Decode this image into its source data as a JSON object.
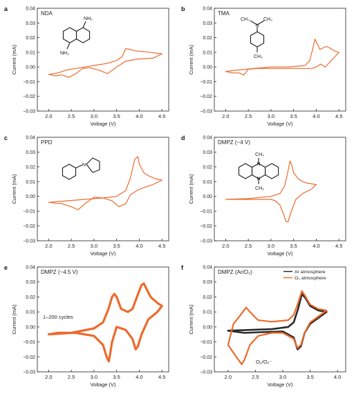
{
  "figure": {
    "colors": {
      "orange": "#ec6a2c",
      "dark": "#2a2a2a",
      "axis": "#231f20"
    }
  },
  "chart_data": [
    {
      "type": "line",
      "panel_letter": "a",
      "label": "NDA",
      "xlabel": "Voltage (V)",
      "ylabel": "Current (mA)",
      "xlim": [
        1.75,
        4.65
      ],
      "ylim": [
        -0.03,
        0.04
      ],
      "xticks": [
        2.0,
        2.5,
        3.0,
        3.5,
        4.0,
        4.5
      ],
      "yticks": [
        -0.03,
        -0.02,
        -0.01,
        0.0,
        0.01,
        0.02,
        0.03,
        0.04
      ],
      "xtick_labels": [
        "2.0",
        "2.5",
        "3.0",
        "3.5",
        "4.0",
        "4.5"
      ],
      "ytick_labels": [
        "−0.03",
        "−0.02",
        "−0.01",
        "0.00",
        "0.01",
        "0.02",
        "0.03",
        "0.04"
      ],
      "molecule": "naphthalenediamine",
      "chem_labels": [
        "NH₂",
        "NH₂"
      ],
      "grid": false,
      "series": [
        {
          "color": "orange",
          "x": [
            2.0,
            2.2,
            2.4,
            2.6,
            2.8,
            3.0,
            3.2,
            3.35,
            3.5,
            3.62,
            3.7,
            3.8,
            3.9,
            4.1,
            4.3,
            4.5,
            4.3,
            4.0,
            3.7,
            3.5,
            3.3,
            3.1,
            2.9,
            2.75,
            2.6,
            2.45,
            2.3,
            2.15,
            2.0
          ],
          "y": [
            -0.005,
            -0.004,
            -0.002,
            -0.001,
            0.0,
            0.001,
            0.002,
            0.003,
            0.0045,
            0.007,
            0.0125,
            0.012,
            0.011,
            0.0105,
            0.0098,
            0.009,
            0.006,
            0.0055,
            0.004,
            0.0,
            -0.0045,
            -0.002,
            -0.0005,
            -0.001,
            -0.0045,
            -0.007,
            -0.0055,
            -0.006,
            -0.005
          ]
        }
      ]
    },
    {
      "type": "line",
      "panel_letter": "b",
      "label": "TMA",
      "xlabel": "Voltage (V)",
      "ylabel": "Current (mA)",
      "xlim": [
        1.75,
        4.65
      ],
      "ylim": [
        -0.03,
        0.04
      ],
      "xticks": [
        2.0,
        2.5,
        3.0,
        3.5,
        4.0,
        4.5
      ],
      "yticks": [
        -0.03,
        -0.02,
        -0.01,
        0.0,
        0.01,
        0.02,
        0.03,
        0.04
      ],
      "xtick_labels": [
        "2.0",
        "2.5",
        "3.0",
        "3.5",
        "4.0",
        "4.5"
      ],
      "ytick_labels": [
        "−0.03",
        "−0.02",
        "−0.01",
        "0.00",
        "0.01",
        "0.02",
        "0.03",
        "0.04"
      ],
      "molecule": "trimethylaniline",
      "chem_labels": [
        "CH₃",
        "N",
        "CH₃",
        "CH₃"
      ],
      "grid": false,
      "series": [
        {
          "color": "orange",
          "x": [
            2.0,
            2.3,
            2.6,
            3.0,
            3.4,
            3.75,
            3.85,
            3.92,
            3.97,
            4.02,
            4.08,
            4.15,
            4.22,
            4.3,
            4.4,
            4.5,
            4.35,
            4.2,
            4.1,
            4.0,
            3.9,
            3.7,
            3.4,
            3.0,
            2.7,
            2.5,
            2.4,
            2.3,
            2.15,
            2.0
          ],
          "y": [
            -0.003,
            -0.002,
            -0.001,
            0.0,
            0.0,
            0.001,
            0.004,
            0.012,
            0.019,
            0.016,
            0.012,
            0.013,
            0.014,
            0.013,
            0.011,
            0.01,
            0.005,
            0.0,
            0.002,
            0.0,
            -0.001,
            -0.001,
            -0.001,
            -0.001,
            -0.001,
            -0.0015,
            -0.0055,
            -0.004,
            -0.004,
            -0.003
          ]
        }
      ]
    },
    {
      "type": "line",
      "panel_letter": "c",
      "label": "PPD",
      "xlabel": "Voltage (V)",
      "ylabel": "Current (mA)",
      "xlim": [
        1.75,
        4.65
      ],
      "ylim": [
        -0.03,
        0.04
      ],
      "xticks": [
        2.0,
        2.5,
        3.0,
        3.5,
        4.0,
        4.5
      ],
      "yticks": [
        -0.03,
        -0.02,
        -0.01,
        0.0,
        0.01,
        0.02,
        0.03,
        0.04
      ],
      "xtick_labels": [
        "2.0",
        "2.5",
        "3.0",
        "3.5",
        "4.0",
        "4.5"
      ],
      "ytick_labels": [
        "−0.03",
        "−0.02",
        "−0.01",
        "0.00",
        "0.01",
        "0.02",
        "0.03",
        "0.04"
      ],
      "molecule": "phenylpyrrolidine",
      "chem_labels": [
        "N"
      ],
      "grid": false,
      "series": [
        {
          "color": "orange",
          "x": [
            2.0,
            2.4,
            2.8,
            3.2,
            3.5,
            3.7,
            3.8,
            3.9,
            3.97,
            4.0,
            4.1,
            4.2,
            4.35,
            4.5,
            4.3,
            4.1,
            3.95,
            3.8,
            3.7,
            3.55,
            3.4,
            3.2,
            3.0,
            2.8,
            2.65,
            2.5,
            2.3,
            2.0
          ],
          "y": [
            -0.004,
            -0.003,
            -0.002,
            -0.001,
            0.0,
            0.004,
            0.012,
            0.025,
            0.027,
            0.022,
            0.016,
            0.014,
            0.012,
            0.011,
            0.008,
            0.006,
            0.004,
            0.001,
            -0.005,
            -0.007,
            -0.003,
            -0.001,
            -0.0005,
            -0.005,
            -0.009,
            -0.007,
            -0.005,
            -0.004
          ]
        }
      ]
    },
    {
      "type": "line",
      "panel_letter": "d",
      "label": "DMPZ (~4 V)",
      "xlabel": "Voltage (V)",
      "ylabel": "Current (mA)",
      "xlim": [
        1.75,
        4.65
      ],
      "ylim": [
        -0.03,
        0.04
      ],
      "xticks": [
        2.0,
        2.5,
        3.0,
        3.5,
        4.0,
        4.5
      ],
      "yticks": [
        -0.03,
        -0.02,
        -0.01,
        0.0,
        0.01,
        0.02,
        0.03,
        0.04
      ],
      "xtick_labels": [
        "2.0",
        "2.5",
        "3.0",
        "3.5",
        "4.0",
        "4.5"
      ],
      "ytick_labels": [
        "−0.03",
        "−0.02",
        "−0.01",
        "0.00",
        "0.01",
        "0.02",
        "0.03",
        "0.04"
      ],
      "molecule": "dimethylphenazine",
      "chem_labels": [
        "CH₃",
        "N",
        "N",
        "CH₃"
      ],
      "grid": false,
      "series": [
        {
          "color": "orange",
          "x": [
            2.0,
            2.5,
            3.0,
            3.2,
            3.3,
            3.37,
            3.42,
            3.45,
            3.5,
            3.6,
            3.7,
            3.8,
            3.9,
            4.0,
            3.9,
            3.7,
            3.55,
            3.45,
            3.38,
            3.33,
            3.28,
            3.2,
            3.1,
            3.0,
            2.8,
            2.5,
            2.2,
            2.0
          ],
          "y": [
            -0.002,
            -0.0015,
            0.0,
            0.002,
            0.007,
            0.016,
            0.024,
            0.022,
            0.016,
            0.012,
            0.01,
            0.009,
            0.0085,
            0.008,
            0.005,
            0.002,
            -0.002,
            -0.01,
            -0.017,
            -0.017,
            -0.012,
            -0.006,
            -0.003,
            -0.002,
            -0.002,
            -0.002,
            -0.002,
            -0.002
          ]
        }
      ]
    },
    {
      "type": "line",
      "panel_letter": "e",
      "label": "DMPZ (~4.5 V)",
      "xlabel": "Voltage (V)",
      "ylabel": "Current (mA)",
      "xlim": [
        1.75,
        4.65
      ],
      "ylim": [
        -0.03,
        0.04
      ],
      "xticks": [
        2.0,
        2.5,
        3.0,
        3.5,
        4.0,
        4.5
      ],
      "yticks": [
        -0.03,
        -0.02,
        -0.01,
        0.0,
        0.01,
        0.02,
        0.03,
        0.04
      ],
      "xtick_labels": [
        "2.0",
        "2.5",
        "3.0",
        "3.5",
        "4.0",
        "4.5"
      ],
      "ytick_labels": [
        "−0.03",
        "−0.02",
        "−0.01",
        "0.00",
        "0.01",
        "0.02",
        "0.03",
        "0.04"
      ],
      "annotations": [
        "1–200 cycles"
      ],
      "grid": false,
      "series": [
        {
          "color": "orange",
          "stroke_width": 3.2,
          "x": [
            2.0,
            2.5,
            3.0,
            3.2,
            3.32,
            3.4,
            3.45,
            3.5,
            3.6,
            3.75,
            3.85,
            3.95,
            4.05,
            4.1,
            4.15,
            4.25,
            4.4,
            4.5,
            4.4,
            4.2,
            4.05,
            3.97,
            3.92,
            3.85,
            3.7,
            3.5,
            3.4,
            3.33,
            3.28,
            3.2,
            3.0,
            2.6,
            2.2,
            2.0
          ],
          "y": [
            -0.005,
            -0.004,
            -0.001,
            0.003,
            0.012,
            0.02,
            0.022,
            0.02,
            0.012,
            0.01,
            0.012,
            0.02,
            0.028,
            0.029,
            0.026,
            0.02,
            0.016,
            0.014,
            0.01,
            0.005,
            -0.005,
            -0.013,
            -0.015,
            -0.008,
            -0.002,
            0.0,
            -0.01,
            -0.023,
            -0.02,
            -0.012,
            -0.006,
            -0.004,
            -0.004,
            -0.005
          ]
        }
      ]
    },
    {
      "type": "line",
      "panel_letter": "f",
      "label": "DMPZ (Ar/O₂)",
      "xlabel": "Voltage (V)",
      "ylabel": "Current (mA)",
      "xlim": [
        1.75,
        4.15
      ],
      "ylim": [
        -0.03,
        0.04
      ],
      "xticks": [
        2.0,
        2.5,
        3.0,
        3.5,
        4.0
      ],
      "yticks": [
        -0.03,
        -0.02,
        -0.01,
        0.0,
        0.01,
        0.02,
        0.03,
        0.04
      ],
      "xtick_labels": [
        "2.0",
        "2.5",
        "3.0",
        "3.5",
        "4.0"
      ],
      "ytick_labels": [
        "−0.03",
        "−0.02",
        "−0.01",
        "0.00",
        "0.01",
        "0.02",
        "0.03",
        "0.04"
      ],
      "annotations": [
        "O₂/O₂⁻"
      ],
      "legend_position": "top-right",
      "legend": [
        "Ar atmosphere",
        "O₂ atmosphere"
      ],
      "grid": false,
      "series": [
        {
          "name": "Ar atmosphere",
          "color": "dark",
          "stroke_width": 2.6,
          "x": [
            2.0,
            2.4,
            2.8,
            3.1,
            3.2,
            3.28,
            3.35,
            3.42,
            3.5,
            3.65,
            3.8,
            3.65,
            3.5,
            3.4,
            3.33,
            3.27,
            3.2,
            3.0,
            2.6,
            2.3,
            2.0
          ],
          "y": [
            -0.0025,
            -0.002,
            -0.0015,
            0.0,
            0.003,
            0.012,
            0.022,
            0.019,
            0.014,
            0.011,
            0.01,
            0.006,
            0.002,
            -0.004,
            -0.013,
            -0.015,
            -0.007,
            -0.003,
            -0.0035,
            -0.004,
            -0.0025
          ]
        },
        {
          "name": "O₂ atmosphere",
          "color": "orange",
          "stroke_width": 2.2,
          "x": [
            2.0,
            2.1,
            2.25,
            2.33,
            2.4,
            2.55,
            2.8,
            3.1,
            3.2,
            3.28,
            3.35,
            3.42,
            3.5,
            3.65,
            3.8,
            3.65,
            3.5,
            3.4,
            3.33,
            3.27,
            3.2,
            3.0,
            2.8,
            2.55,
            2.4,
            2.3,
            2.25,
            2.15,
            2.0
          ],
          "y": [
            -0.012,
            0.002,
            0.009,
            0.013,
            0.01,
            0.0045,
            0.0035,
            0.0045,
            0.008,
            0.016,
            0.024,
            0.02,
            0.015,
            0.012,
            0.011,
            0.007,
            0.003,
            -0.004,
            -0.012,
            -0.014,
            -0.008,
            -0.004,
            -0.004,
            -0.006,
            -0.012,
            -0.022,
            -0.025,
            -0.02,
            -0.012
          ]
        }
      ]
    }
  ]
}
